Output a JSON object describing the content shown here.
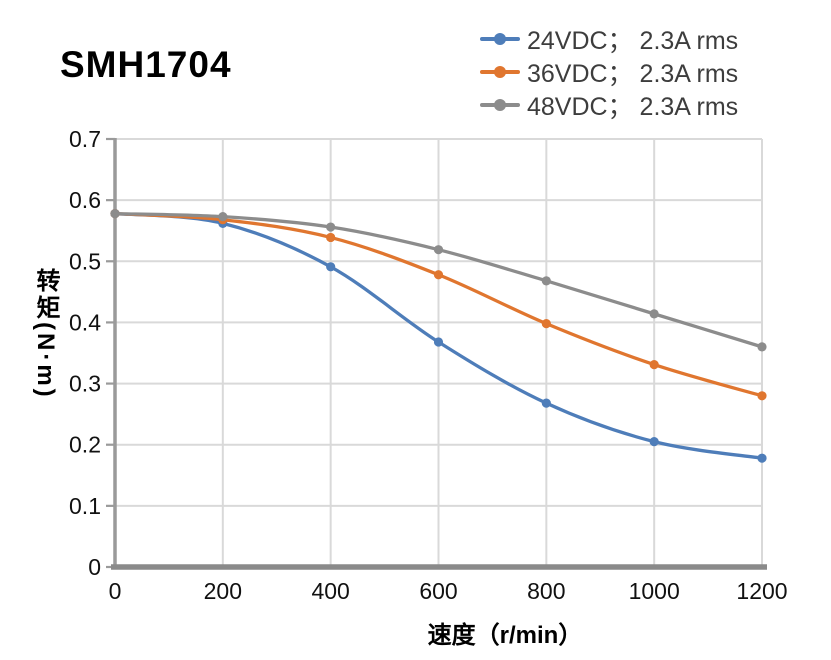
{
  "header": {
    "title": "SMH1704"
  },
  "chart_data": {
    "type": "line",
    "title": "SMH1704",
    "xlabel": "速度（r/min）",
    "ylabel": "转矩(N·m)",
    "xlim": [
      0,
      1200
    ],
    "ylim": [
      0,
      0.7
    ],
    "x_ticks": [
      "0",
      "200",
      "400",
      "600",
      "800",
      "1000",
      "1200"
    ],
    "y_ticks": [
      "0",
      "0.1",
      "0.2",
      "0.3",
      "0.4",
      "0.5",
      "0.6",
      "0.7"
    ],
    "grid": true,
    "legend_position": "top-right",
    "x": [
      0,
      200,
      400,
      600,
      800,
      1000,
      1200
    ],
    "series": [
      {
        "name": "24VDC； 2.3A rms",
        "color": "#4E7DB9",
        "values": [
          0.578,
          0.562,
          0.491,
          0.368,
          0.268,
          0.205,
          0.178
        ]
      },
      {
        "name": "36VDC； 2.3A rms",
        "color": "#E0762F",
        "values": [
          0.578,
          0.568,
          0.539,
          0.478,
          0.398,
          0.331,
          0.28
        ]
      },
      {
        "name": "48VDC； 2.3A rms",
        "color": "#8C8C8C",
        "values": [
          0.578,
          0.573,
          0.556,
          0.519,
          0.468,
          0.414,
          0.36
        ]
      }
    ],
    "colors": {
      "gridline": "#d9d9d9",
      "axis_line": "#9a9a9a",
      "bottom_axis": "#8a8a8a",
      "tick_text": "#111111",
      "legend_text": "#3d3d3d",
      "title_text": "#000000"
    }
  }
}
